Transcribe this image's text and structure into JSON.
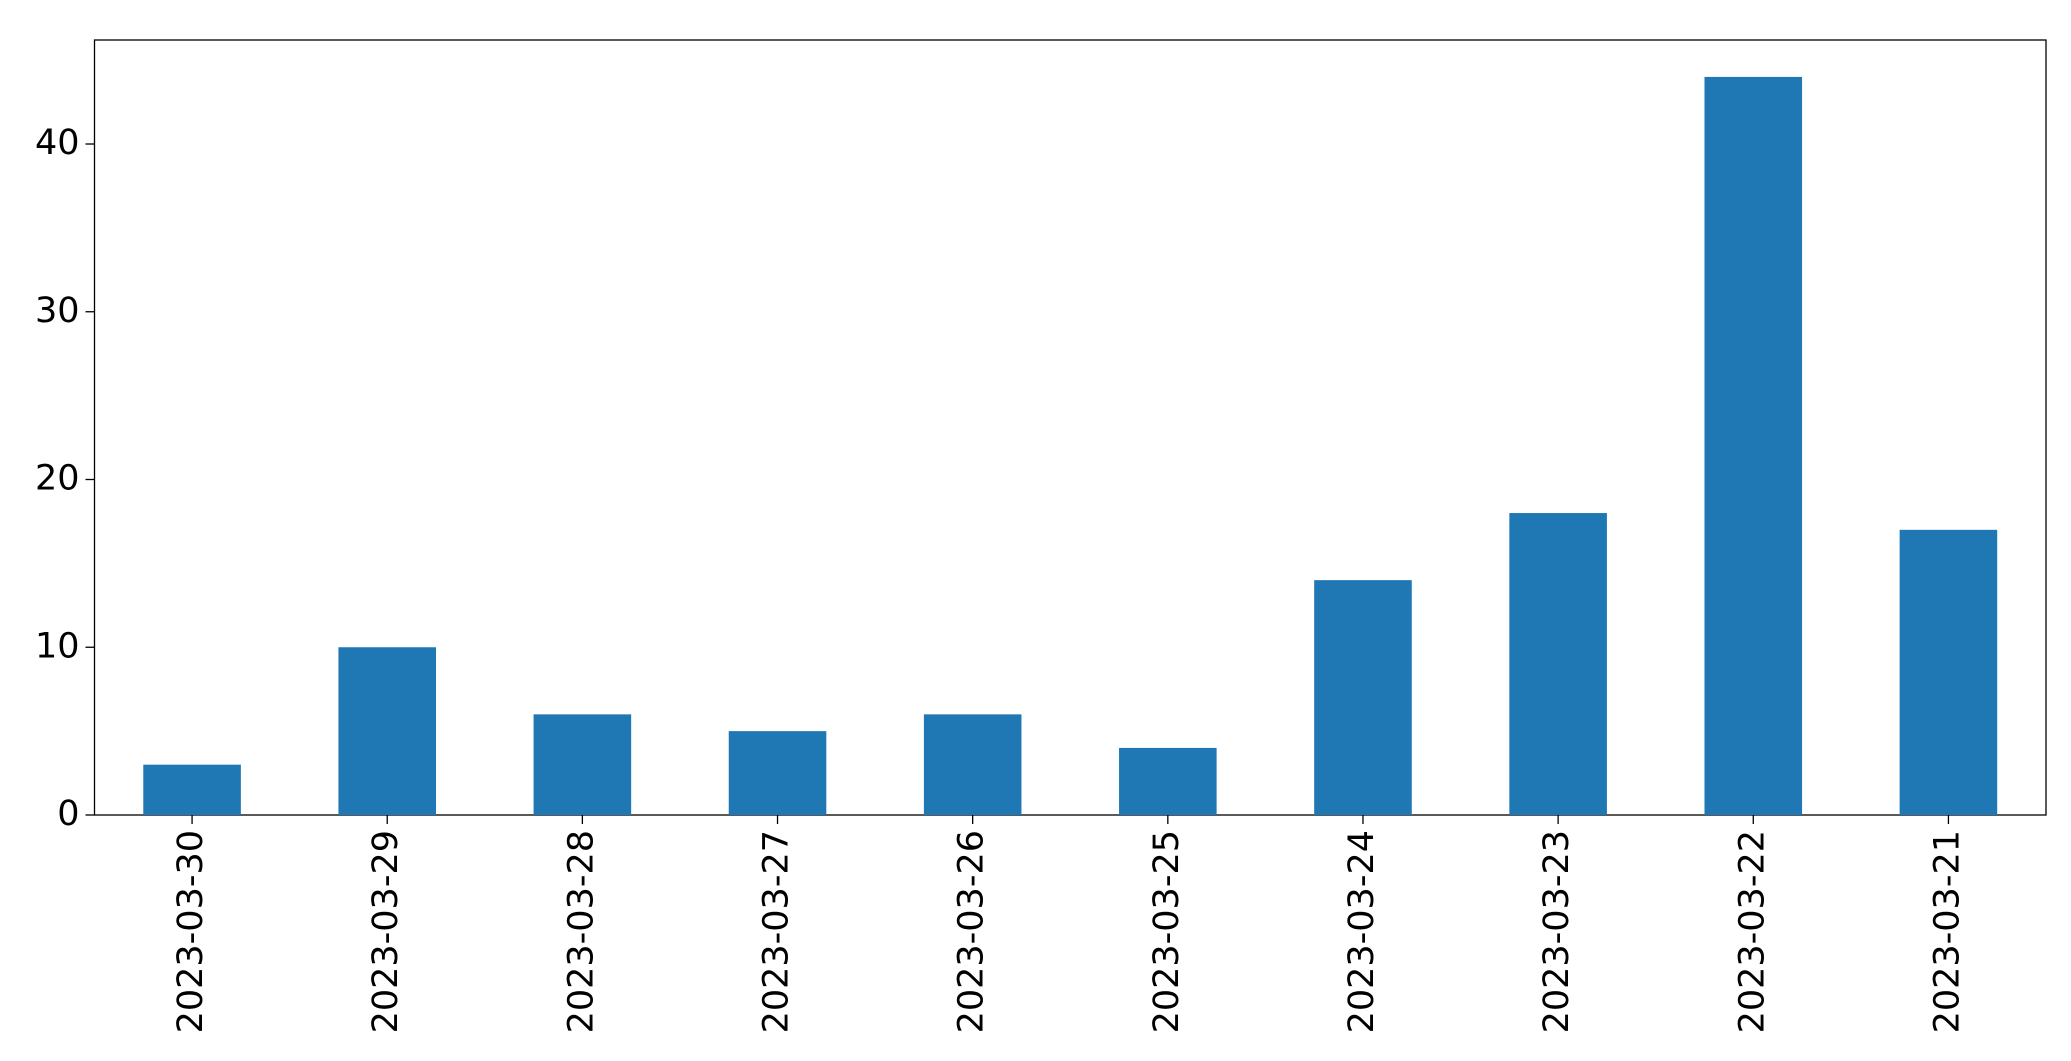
{
  "chart_data": {
    "type": "bar",
    "categories": [
      "2023-03-30",
      "2023-03-29",
      "2023-03-28",
      "2023-03-27",
      "2023-03-26",
      "2023-03-25",
      "2023-03-24",
      "2023-03-23",
      "2023-03-22",
      "2023-03-21"
    ],
    "values": [
      3,
      10,
      6,
      5,
      6,
      4,
      14,
      18,
      44,
      17
    ],
    "color": "#1f77b4",
    "ylim": [
      0,
      46.2
    ],
    "yticks": [
      0,
      10,
      20,
      30,
      40
    ],
    "grid": false
  }
}
